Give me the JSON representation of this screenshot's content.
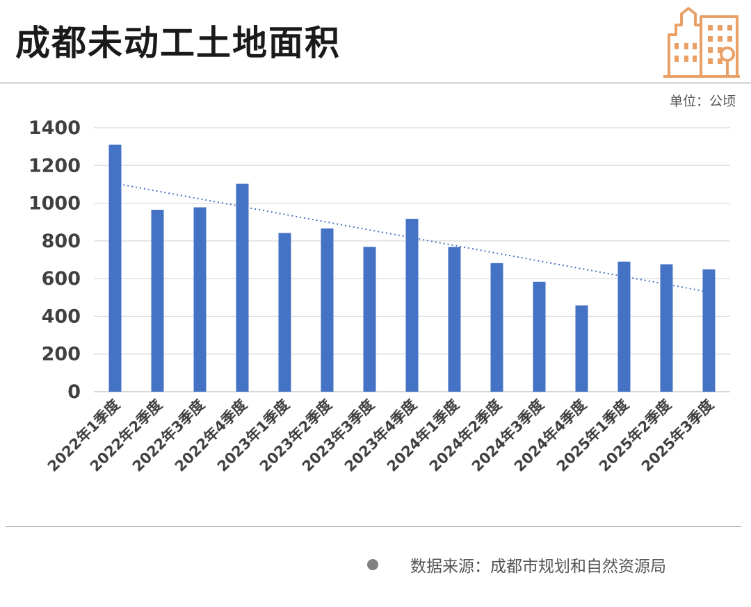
{
  "header": {
    "title": "成都未动工土地面积",
    "unit": "单位：公顷"
  },
  "footer": {
    "source": "数据来源：成都市规划和自然资源局"
  },
  "colors": {
    "bar": "#4472C4",
    "trendline": "#4472C4",
    "grid": "#d9d9d9",
    "logo": "#E8A066"
  },
  "icons": {
    "logo": "city-buildings-icon"
  },
  "chart_data": {
    "type": "bar",
    "title": "",
    "xlabel": "",
    "ylabel": "",
    "categories": [
      "2022年1季度",
      "2022年2季度",
      "2022年3季度",
      "2022年4季度",
      "2023年1季度",
      "2023年2季度",
      "2023年3季度",
      "2023年4季度",
      "2024年1季度",
      "2024年2季度",
      "2024年3季度",
      "2024年4季度",
      "2025年1季度",
      "2025年2季度",
      "2025年3季度"
    ],
    "values": [
      1310,
      965,
      978,
      1103,
      842,
      866,
      768,
      917,
      767,
      682,
      583,
      458,
      690,
      676,
      649
    ],
    "ylim": [
      0,
      1400
    ],
    "yticks": [
      0,
      200,
      400,
      600,
      800,
      1000,
      1200,
      1400
    ],
    "grid": true,
    "trendline": {
      "type": "linear",
      "style": "dotted"
    }
  }
}
